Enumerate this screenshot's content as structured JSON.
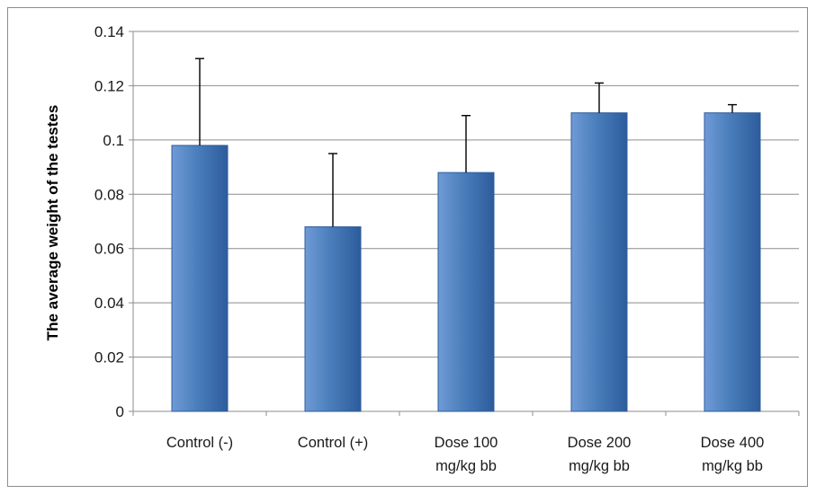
{
  "chart_data": {
    "type": "bar",
    "title": "",
    "xlabel": "",
    "ylabel": "The average weight of the testes",
    "categories": [
      [
        "Control (-)"
      ],
      [
        "Control (+)"
      ],
      [
        "Dose 100",
        "mg/kg bb"
      ],
      [
        "Dose 200",
        "mg/kg bb"
      ],
      [
        "Dose 400",
        "mg/kg bb"
      ]
    ],
    "values": [
      0.098,
      0.068,
      0.088,
      0.11,
      0.11
    ],
    "error_upper": [
      0.13,
      0.095,
      0.109,
      0.121,
      0.113
    ],
    "ylim": [
      0,
      0.14
    ],
    "yticks": [
      "0",
      "0.02",
      "0.04",
      "0.06",
      "0.08",
      "0.1",
      "0.12",
      "0.14"
    ],
    "grid": true,
    "legend": "none",
    "colors": {
      "bar": "#4a7ebb",
      "bar_light": "#6f9bd6",
      "bar_dark": "#2d5c9c",
      "grid": "#8c8c8c",
      "error": "#000000"
    }
  }
}
